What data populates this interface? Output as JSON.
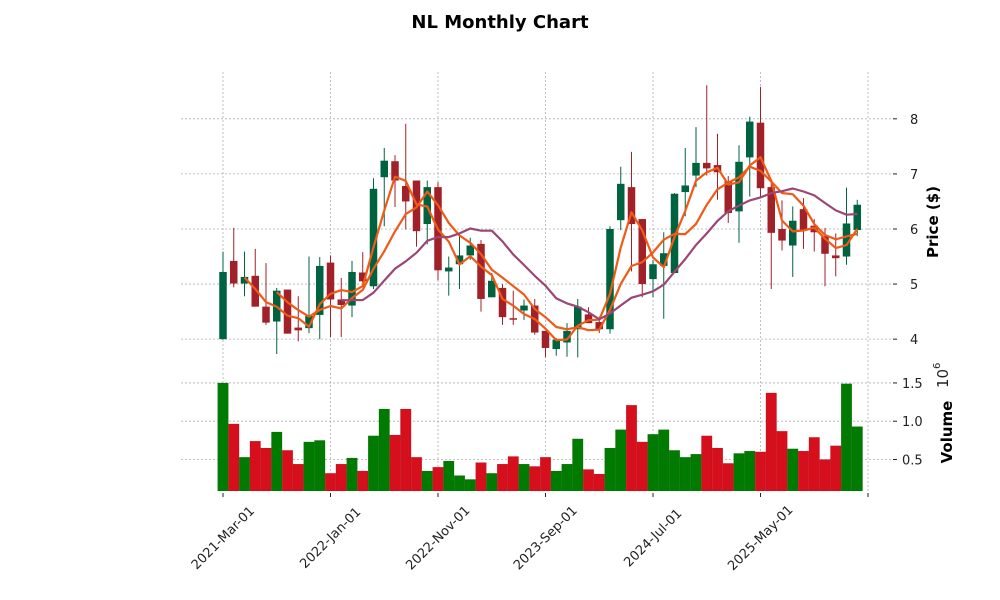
{
  "chart_data": {
    "type": "candlestick",
    "title": "NL Monthly Chart",
    "ylabel": "Price ($)",
    "volume_label": "Volume",
    "volume_exponent": "10",
    "volume_exponent_power": "6",
    "x_tick_labels": [
      "2021-Mar-01",
      "2022-Jan-01",
      "2022-Nov-01",
      "2023-Sep-01",
      "2024-Jul-01",
      "2025-May-01"
    ],
    "x_tick_indices": [
      0,
      10,
      20,
      30,
      40,
      50,
      60
    ],
    "price_ylim": [
      3.44,
      8.85
    ],
    "price_ticks": [
      "4",
      "5",
      "6",
      "7",
      "8"
    ],
    "volume_ylim": [
      0.088,
      1.63
    ],
    "volume_ticks": [
      "0.5",
      "1.0",
      "1.5"
    ],
    "moving_averages": [
      3,
      6,
      12
    ],
    "colors": {
      "up": "#006340",
      "down": "#a02128",
      "vol_up": "#007a00",
      "vol_down": "#d50f1c",
      "ma3": "#f05a16",
      "ma6": "#ee5a18",
      "ma12": "#9c4674"
    },
    "ohlcv_columns": [
      "open",
      "high",
      "low",
      "close",
      "volume_millions"
    ],
    "ohlcv": [
      [
        4.0,
        5.59,
        3.99,
        5.22,
        1.5
      ],
      [
        5.42,
        6.02,
        4.94,
        5.01,
        0.965
      ],
      [
        5.01,
        5.59,
        4.78,
        5.13,
        0.53
      ],
      [
        5.15,
        5.64,
        4.59,
        4.59,
        0.74
      ],
      [
        4.59,
        5.38,
        4.26,
        4.3,
        0.65
      ],
      [
        4.32,
        4.93,
        3.73,
        4.88,
        0.86
      ],
      [
        4.9,
        4.9,
        4.1,
        4.1,
        0.62
      ],
      [
        4.21,
        4.78,
        3.96,
        4.16,
        0.44
      ],
      [
        4.2,
        5.5,
        4.11,
        4.42,
        0.73
      ],
      [
        4.44,
        5.49,
        4.0,
        5.33,
        0.75
      ],
      [
        5.39,
        5.52,
        4.04,
        4.72,
        0.32
      ],
      [
        4.72,
        5.11,
        4.04,
        4.62,
        0.44
      ],
      [
        4.61,
        5.42,
        4.4,
        5.22,
        0.52
      ],
      [
        5.21,
        5.58,
        4.96,
        5.05,
        0.35
      ],
      [
        4.96,
        6.92,
        4.91,
        6.73,
        0.81
      ],
      [
        6.94,
        7.47,
        6.05,
        7.24,
        1.16
      ],
      [
        7.23,
        7.34,
        6.4,
        6.88,
        0.82
      ],
      [
        6.78,
        7.91,
        5.99,
        6.5,
        1.16
      ],
      [
        6.88,
        6.88,
        5.68,
        5.96,
        0.53
      ],
      [
        6.09,
        6.88,
        5.72,
        6.76,
        0.35
      ],
      [
        6.76,
        6.85,
        5.07,
        5.25,
        0.4
      ],
      [
        5.23,
        5.5,
        4.79,
        5.3,
        0.48
      ],
      [
        5.36,
        5.9,
        4.91,
        5.52,
        0.29
      ],
      [
        5.52,
        5.84,
        5.44,
        5.7,
        0.24
      ],
      [
        5.73,
        5.8,
        4.5,
        4.73,
        0.46
      ],
      [
        4.76,
        5.2,
        4.76,
        5.06,
        0.32
      ],
      [
        4.93,
        5.0,
        4.26,
        4.4,
        0.44
      ],
      [
        4.38,
        4.88,
        4.26,
        4.36,
        0.54
      ],
      [
        4.52,
        4.72,
        4.35,
        4.61,
        0.44
      ],
      [
        4.61,
        4.73,
        4.08,
        4.12,
        0.41
      ],
      [
        4.15,
        4.15,
        3.67,
        3.84,
        0.53
      ],
      [
        3.82,
        4.02,
        3.7,
        3.99,
        0.35
      ],
      [
        3.94,
        4.29,
        3.68,
        4.15,
        0.44
      ],
      [
        4.18,
        4.73,
        3.67,
        4.59,
        0.77
      ],
      [
        4.45,
        4.58,
        4.29,
        4.29,
        0.37
      ],
      [
        4.31,
        4.41,
        4.11,
        4.18,
        0.31
      ],
      [
        4.18,
        6.05,
        4.1,
        6.0,
        0.65
      ],
      [
        6.16,
        7.13,
        5.98,
        6.82,
        0.89
      ],
      [
        6.76,
        7.4,
        5.23,
        6.09,
        1.21
      ],
      [
        6.18,
        6.18,
        4.76,
        5.0,
        0.73
      ],
      [
        5.09,
        5.44,
        4.76,
        5.36,
        0.83
      ],
      [
        5.33,
        5.94,
        4.37,
        5.56,
        0.89
      ],
      [
        5.2,
        6.65,
        5.2,
        6.64,
        0.62
      ],
      [
        6.67,
        7.47,
        6.23,
        6.79,
        0.53
      ],
      [
        6.97,
        7.85,
        6.76,
        7.2,
        0.57
      ],
      [
        7.2,
        8.61,
        6.97,
        7.1,
        0.81
      ],
      [
        7.16,
        7.73,
        6.53,
        7.03,
        0.65
      ],
      [
        6.87,
        6.96,
        6.11,
        6.29,
        0.45
      ],
      [
        6.32,
        7.52,
        5.75,
        7.22,
        0.58
      ],
      [
        7.3,
        8.04,
        6.59,
        7.95,
        0.61
      ],
      [
        7.93,
        8.58,
        6.59,
        6.74,
        0.6
      ],
      [
        6.76,
        6.84,
        4.91,
        5.93,
        1.37
      ],
      [
        6.0,
        6.52,
        5.61,
        5.79,
        0.87
      ],
      [
        5.7,
        6.41,
        5.13,
        6.15,
        0.64
      ],
      [
        6.36,
        6.56,
        5.64,
        5.98,
        0.61
      ],
      [
        6.06,
        6.18,
        5.59,
        5.94,
        0.79
      ],
      [
        5.87,
        6.02,
        4.96,
        5.55,
        0.5
      ],
      [
        5.52,
        5.92,
        5.14,
        5.47,
        0.68
      ],
      [
        5.5,
        6.75,
        5.35,
        6.1,
        1.49
      ],
      [
        5.98,
        6.53,
        5.87,
        6.44,
        0.93
      ]
    ]
  }
}
